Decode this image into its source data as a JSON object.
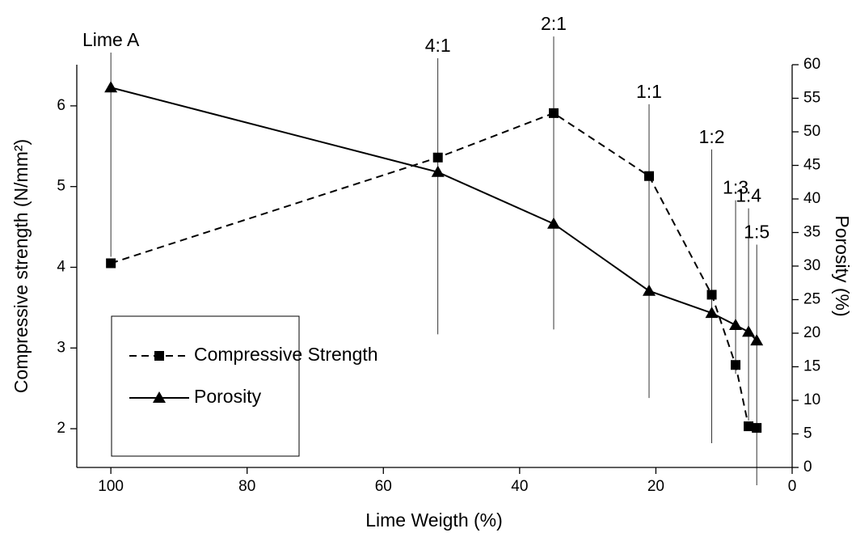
{
  "chart_data": {
    "type": "line",
    "x_label": "Lime Weigth (%)",
    "y_label": "Compressive strength (N/mm²)",
    "y2_label": "Porosity (%)",
    "x": [
      100,
      52,
      35,
      21,
      11.8,
      8.3,
      6.4,
      5.2
    ],
    "series": [
      {
        "name": "Compressive Strength",
        "color": "#000000",
        "dash": true,
        "marker": "square",
        "values": [
          4.05,
          5.36,
          5.91,
          5.13,
          3.66,
          2.79,
          2.03,
          2.01
        ]
      },
      {
        "name": "Porosity",
        "color": "#000000",
        "dash": false,
        "marker": "triangle",
        "axis": "y2",
        "values": [
          56.6,
          44,
          36.3,
          26.3,
          23,
          21.2,
          20.2,
          18.9
        ]
      }
    ],
    "annotations": [
      {
        "text": "Lime A",
        "x": 100,
        "range": [
          4.13,
          6.66
        ]
      },
      {
        "text": "4:1",
        "x": 52,
        "range": [
          3.17,
          6.59
        ]
      },
      {
        "text": "2:1",
        "x": 35,
        "range": [
          3.23,
          6.86
        ]
      },
      {
        "text": "1:1",
        "x": 21,
        "range": [
          2.38,
          6.02
        ]
      },
      {
        "text": "1:2",
        "x": 11.8,
        "range": [
          1.82,
          5.46
        ]
      },
      {
        "text": "1:3",
        "x": 8.3,
        "range": [
          2.68,
          4.83
        ]
      },
      {
        "text": "1:4",
        "x": 6.4,
        "range": [
          2.1,
          4.73
        ]
      },
      {
        "text": "1:5",
        "x": 5.2,
        "range": [
          1.3,
          4.28
        ]
      }
    ],
    "xlim": [
      105,
      0
    ],
    "xticks": [
      100,
      80,
      60,
      40,
      20,
      0
    ],
    "ylim": [
      1.52,
      6.51
    ],
    "yticks": [
      2,
      3,
      4,
      5,
      6
    ],
    "y2lim": [
      0,
      60
    ],
    "y2ticks": [
      0,
      5,
      10,
      15,
      20,
      25,
      30,
      35,
      40,
      45,
      50,
      55,
      60
    ],
    "legend": "lower left"
  }
}
